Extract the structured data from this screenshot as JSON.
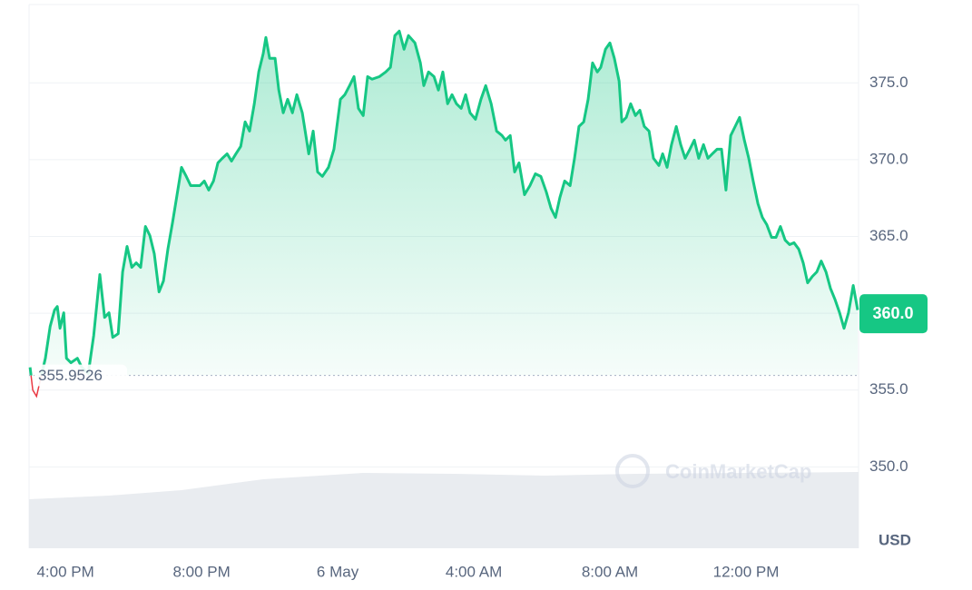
{
  "chart_data": {
    "type": "line",
    "x": [
      14.96,
      15.04,
      15.15,
      15.41,
      15.55,
      15.68,
      15.76,
      15.84,
      15.95,
      16.03,
      16.16,
      16.35,
      16.48,
      16.67,
      16.83,
      17.01,
      17.15,
      17.28,
      17.39,
      17.55,
      17.68,
      17.81,
      17.95,
      18.08,
      18.21,
      18.35,
      18.48,
      18.61,
      18.75,
      18.88,
      19.01,
      19.15,
      19.28,
      19.41,
      19.55,
      19.68,
      19.81,
      19.95,
      20.08,
      20.21,
      20.35,
      20.48,
      20.61,
      20.75,
      20.88,
      21.01,
      21.15,
      21.28,
      21.41,
      21.55,
      21.68,
      21.81,
      21.89,
      22.0,
      22.16,
      22.27,
      22.4,
      22.53,
      22.67,
      22.8,
      22.96,
      23.15,
      23.28,
      23.41,
      23.55,
      23.73,
      23.89,
      24.08,
      24.21,
      24.35,
      24.48,
      24.61,
      24.75,
      24.88,
      25.01,
      25.23,
      25.41,
      25.55,
      25.68,
      25.81,
      25.95,
      26.08,
      26.27,
      26.43,
      26.53,
      26.67,
      26.83,
      26.96,
      27.09,
      27.23,
      27.36,
      27.49,
      27.63,
      27.76,
      27.89,
      28.05,
      28.21,
      28.35,
      28.51,
      28.67,
      28.83,
      28.93,
      29.07,
      29.2,
      29.33,
      29.49,
      29.65,
      29.81,
      29.97,
      30.13,
      30.27,
      30.4,
      30.53,
      30.67,
      30.83,
      30.96,
      31.09,
      31.23,
      31.36,
      31.49,
      31.63,
      31.73,
      31.87,
      32.0,
      32.13,
      32.27,
      32.35,
      32.48,
      32.61,
      32.75,
      32.88,
      33.01,
      33.15,
      33.28,
      33.44,
      33.55,
      33.68,
      33.81,
      33.95,
      34.08,
      34.21,
      34.35,
      34.48,
      34.61,
      34.75,
      34.88,
      35.01,
      35.15,
      35.28,
      35.41,
      35.55,
      35.68,
      35.81,
      35.95,
      36.08,
      36.21,
      36.35,
      36.48,
      36.61,
      36.75,
      36.88,
      37.01,
      37.15,
      37.28,
      37.41,
      37.55,
      37.68,
      37.81,
      37.95,
      38.08,
      38.21,
      38.35,
      38.48,
      38.61,
      38.75,
      38.88,
      39.01,
      39.15,
      39.28
    ],
    "values": [
      356.48,
      355.0,
      354.59,
      357.07,
      359.14,
      360.21,
      360.44,
      359.02,
      360.03,
      357.07,
      356.78,
      357.07,
      356.48,
      356.07,
      358.55,
      362.52,
      359.73,
      360.03,
      358.43,
      358.67,
      362.69,
      364.35,
      362.99,
      363.28,
      362.99,
      365.65,
      365.06,
      363.88,
      361.39,
      362.1,
      364.17,
      365.95,
      367.72,
      369.5,
      368.91,
      368.31,
      368.31,
      368.31,
      368.61,
      368.02,
      368.61,
      369.79,
      370.09,
      370.38,
      369.91,
      370.38,
      370.86,
      372.46,
      371.86,
      373.64,
      375.71,
      376.89,
      377.96,
      376.6,
      376.6,
      374.53,
      373.05,
      373.93,
      373.05,
      374.23,
      373.05,
      370.38,
      371.86,
      369.2,
      368.91,
      369.5,
      370.68,
      373.93,
      374.23,
      374.82,
      375.41,
      373.34,
      372.87,
      375.41,
      375.24,
      375.41,
      375.71,
      376.01,
      378.08,
      378.37,
      377.19,
      378.08,
      377.6,
      376.3,
      374.82,
      375.71,
      375.41,
      374.53,
      375.71,
      373.64,
      374.23,
      373.64,
      373.34,
      374.23,
      373.05,
      372.63,
      373.93,
      374.82,
      373.64,
      371.86,
      371.57,
      371.27,
      371.57,
      369.2,
      369.79,
      367.72,
      368.31,
      369.08,
      368.91,
      367.9,
      366.83,
      366.24,
      367.54,
      368.61,
      368.31,
      370.09,
      372.16,
      372.46,
      373.93,
      376.3,
      375.71,
      376.01,
      377.19,
      377.6,
      376.6,
      375.12,
      372.46,
      372.75,
      373.64,
      372.87,
      373.22,
      372.16,
      371.86,
      370.09,
      369.62,
      370.38,
      369.5,
      370.98,
      372.16,
      370.98,
      370.09,
      370.68,
      371.27,
      370.09,
      370.98,
      370.09,
      370.38,
      370.68,
      370.68,
      368.02,
      371.57,
      372.16,
      372.75,
      371.27,
      370.09,
      368.61,
      367.13,
      366.24,
      365.77,
      364.94,
      364.94,
      365.65,
      364.76,
      364.47,
      364.59,
      364.17,
      363.28,
      361.98,
      362.4,
      362.69,
      363.4,
      362.69,
      361.63,
      360.92,
      360.03,
      359.02,
      360.03,
      361.81,
      360.21
    ],
    "color": "#16c784",
    "below_color": "#ea3943",
    "xlim": [
      14.93,
      39.28
    ],
    "xticks": [
      {
        "value": 16,
        "label": "4:00 PM"
      },
      {
        "value": 20,
        "label": "8:00 PM"
      },
      {
        "value": 24,
        "label": "6 May"
      },
      {
        "value": 28,
        "label": "4:00 AM"
      },
      {
        "value": 32,
        "label": "8:00 AM"
      },
      {
        "value": 36,
        "label": "12:00 PM"
      }
    ],
    "ylim": [
      344.7,
      380.1
    ],
    "yticks": [
      {
        "value": 350,
        "label": "350.0"
      },
      {
        "value": 355,
        "label": "355.0"
      },
      {
        "value": 360,
        "label": "360.0"
      },
      {
        "value": 365,
        "label": "365.0"
      },
      {
        "value": 370,
        "label": "370.0"
      },
      {
        "value": 375,
        "label": "375.0"
      }
    ],
    "reference": 355.9526,
    "current_price": {
      "value": 360.0,
      "label": "360.0"
    },
    "currency": "USD",
    "watermark": "CoinMarketCap",
    "grid": true
  }
}
